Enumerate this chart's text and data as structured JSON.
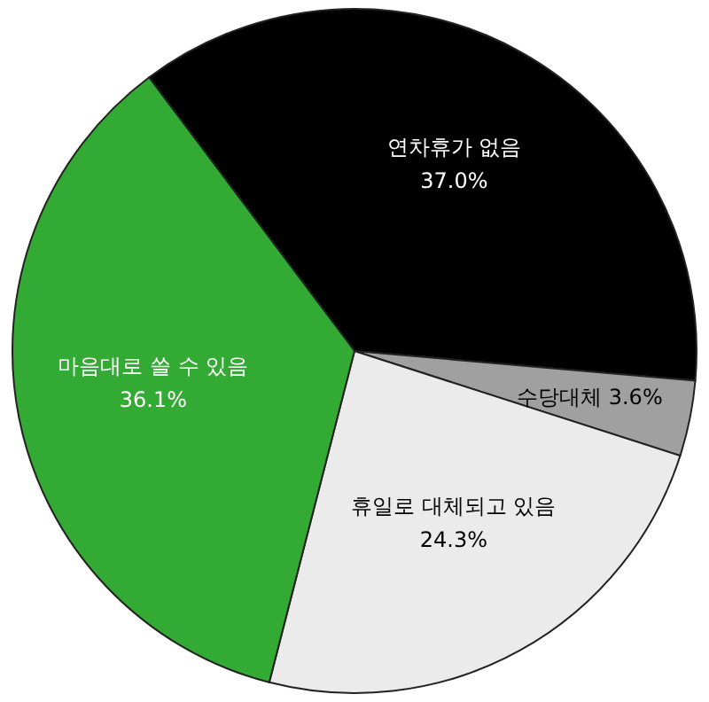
{
  "chart_data": {
    "type": "pie",
    "categories": [
      "연차휴가 없음",
      "수당대체",
      "휴일로 대체되고 있음",
      "마음대로 쓸 수 있음"
    ],
    "values": [
      37.0,
      3.6,
      24.3,
      36.1
    ],
    "colors": [
      "#000000",
      "#a0a0a0",
      "#ebebeb",
      "#33aa33"
    ],
    "value_labels": [
      "37.0%",
      "3.6%",
      "24.3%",
      "36.1%"
    ]
  }
}
